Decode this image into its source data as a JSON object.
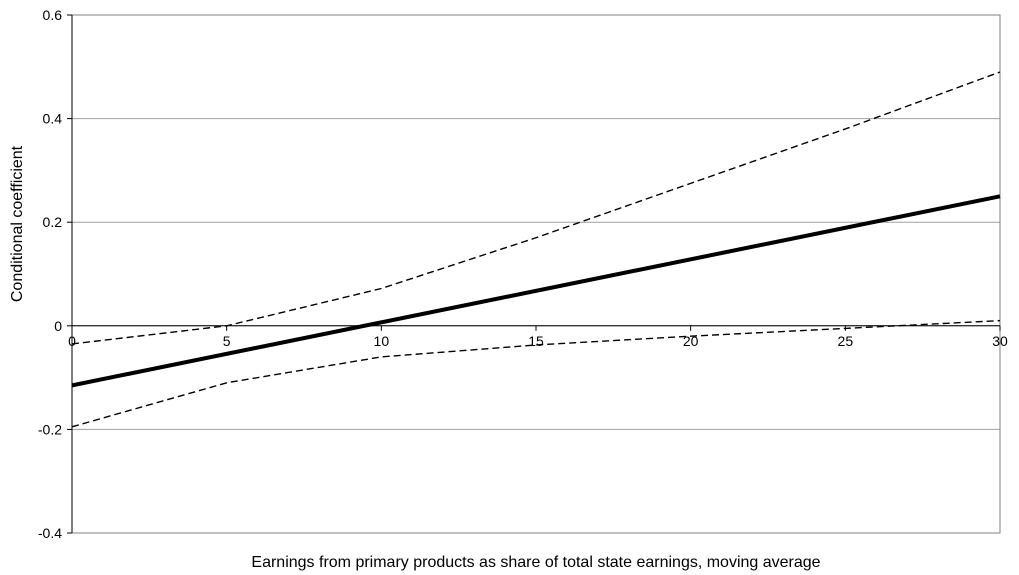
{
  "chart_data": {
    "type": "line",
    "title": "",
    "xlabel": "Earnings from primary products as share of total state earnings, moving average",
    "ylabel": "Conditional coefficient",
    "xlim": [
      0,
      30
    ],
    "ylim": [
      -0.4,
      0.6
    ],
    "x_ticks": [
      0,
      5,
      10,
      15,
      20,
      25,
      30
    ],
    "x_tick_labels": [
      "0",
      "5",
      "10",
      "15",
      "20",
      "25",
      "30"
    ],
    "y_ticks": [
      -0.4,
      -0.2,
      0,
      0.2,
      0.4,
      0.6
    ],
    "y_tick_labels": [
      "-0.4",
      "-0.2",
      "0",
      "0.2",
      "0.4",
      "0.6"
    ],
    "grid": "horizontal",
    "legend": "none",
    "x_axis_crosses_at": 0,
    "series": [
      {
        "style": "solid-thick",
        "color": "#000000",
        "x": [
          0,
          30
        ],
        "y": [
          -0.115,
          0.25
        ]
      },
      {
        "style": "dashed",
        "color": "#000000",
        "x": [
          0,
          5,
          10,
          15,
          20,
          25,
          30
        ],
        "y": [
          -0.035,
          0.0,
          0.072,
          0.17,
          0.275,
          0.38,
          0.49
        ]
      },
      {
        "style": "dashed",
        "color": "#000000",
        "x": [
          0,
          5,
          10,
          15,
          20,
          25,
          30
        ],
        "y": [
          -0.195,
          -0.11,
          -0.06,
          -0.037,
          -0.02,
          -0.005,
          0.01
        ]
      }
    ]
  }
}
